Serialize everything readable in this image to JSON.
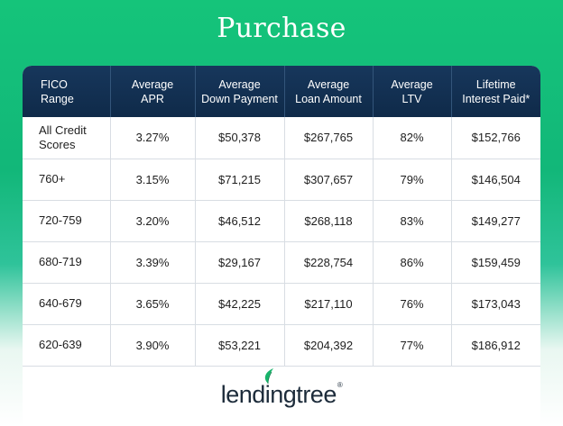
{
  "title": "Purchase",
  "table": {
    "headers": [
      [
        "FICO",
        "Range"
      ],
      [
        "Average",
        "APR"
      ],
      [
        "Average",
        "Down Payment"
      ],
      [
        "Average",
        "Loan Amount"
      ],
      [
        "Average",
        "LTV"
      ],
      [
        "Lifetime",
        "Interest Paid*"
      ]
    ],
    "rows": [
      [
        [
          "All Credit",
          "Scores"
        ],
        "3.27%",
        "$50,378",
        "$267,765",
        "82%",
        "$152,766"
      ],
      [
        "760+",
        "3.15%",
        "$71,215",
        "$307,657",
        "79%",
        "$146,504"
      ],
      [
        "720-759",
        "3.20%",
        "$46,512",
        "$268,118",
        "83%",
        "$149,277"
      ],
      [
        "680-719",
        "3.39%",
        "$29,167",
        "$228,754",
        "86%",
        "$159,459"
      ],
      [
        "640-679",
        "3.65%",
        "$42,225",
        "$217,110",
        "76%",
        "$173,043"
      ],
      [
        "620-639",
        "3.90%",
        "$53,221",
        "$204,392",
        "77%",
        "$186,912"
      ]
    ]
  },
  "logo": {
    "text": "lendingtree",
    "mark": "®",
    "icon": "leaf-icon",
    "color": "#1c2b3a",
    "leaf_color": "#18b46b"
  }
}
